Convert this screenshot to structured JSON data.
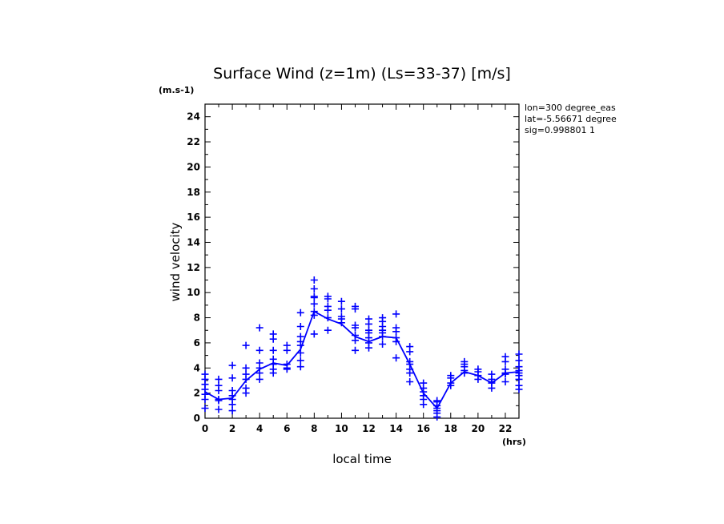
{
  "chart_data": {
    "type": "scatter",
    "title": "Surface Wind (z=1m) (Ls=33-37) [m/s]",
    "ylabel": "wind velocity",
    "yunit": "(m.s-1)",
    "xlabel": "local time",
    "xunit": "(hrs)",
    "info_lines": [
      "lon=300 degree_eas",
      "lat=-5.56671 degree",
      "sig=0.998801 1"
    ],
    "xlim": [
      0,
      23
    ],
    "ylim": [
      0,
      25
    ],
    "xticks": [
      0,
      2,
      4,
      6,
      8,
      10,
      12,
      14,
      16,
      18,
      20,
      22
    ],
    "yticks": [
      0,
      2,
      4,
      6,
      8,
      10,
      12,
      14,
      16,
      18,
      20,
      22,
      24
    ],
    "color": "#0000ff",
    "series": [
      {
        "type": "line",
        "x": [
          0,
          1,
          2,
          3,
          4,
          5,
          6,
          7,
          8,
          9,
          10,
          11,
          12,
          13,
          14,
          15,
          16,
          17,
          18,
          19,
          20,
          21,
          22,
          23
        ],
        "values": [
          2.1,
          1.5,
          1.6,
          3.0,
          3.9,
          4.4,
          4.2,
          5.5,
          8.5,
          7.9,
          7.5,
          6.5,
          6.1,
          6.5,
          6.4,
          4.3,
          2.0,
          0.8,
          2.8,
          3.7,
          3.4,
          2.8,
          3.6,
          3.7
        ]
      },
      {
        "type": "scatter",
        "points": [
          [
            0,
            3.5
          ],
          [
            0,
            3.1
          ],
          [
            0,
            2.7
          ],
          [
            0,
            2.3
          ],
          [
            0,
            1.9
          ],
          [
            0,
            1.5
          ],
          [
            0,
            0.8
          ],
          [
            1,
            3.1
          ],
          [
            1,
            2.6
          ],
          [
            1,
            2.2
          ],
          [
            1,
            1.5
          ],
          [
            1,
            1.4
          ],
          [
            1,
            0.7
          ],
          [
            2,
            4.2
          ],
          [
            2,
            3.2
          ],
          [
            2,
            2.2
          ],
          [
            2,
            1.8
          ],
          [
            2,
            1.5
          ],
          [
            2,
            1.1
          ],
          [
            2,
            0.6
          ],
          [
            3,
            5.8
          ],
          [
            3,
            4.0
          ],
          [
            3,
            3.5
          ],
          [
            3,
            3.1
          ],
          [
            3,
            2.4
          ],
          [
            3,
            2.0
          ],
          [
            4,
            7.2
          ],
          [
            4,
            5.4
          ],
          [
            4,
            4.4
          ],
          [
            4,
            4.0
          ],
          [
            4,
            3.6
          ],
          [
            4,
            3.1
          ],
          [
            5,
            6.7
          ],
          [
            5,
            6.3
          ],
          [
            5,
            5.4
          ],
          [
            5,
            4.7
          ],
          [
            5,
            4.3
          ],
          [
            5,
            3.9
          ],
          [
            5,
            3.6
          ],
          [
            6,
            5.8
          ],
          [
            6,
            5.4
          ],
          [
            6,
            4.3
          ],
          [
            6,
            4.0
          ],
          [
            6,
            3.9
          ],
          [
            7,
            8.4
          ],
          [
            7,
            7.3
          ],
          [
            7,
            6.5
          ],
          [
            7,
            6.1
          ],
          [
            7,
            5.8
          ],
          [
            7,
            5.2
          ],
          [
            7,
            4.6
          ],
          [
            7,
            4.1
          ],
          [
            8,
            11.0
          ],
          [
            8,
            10.3
          ],
          [
            8,
            9.7
          ],
          [
            8,
            9.6
          ],
          [
            8,
            9.1
          ],
          [
            8,
            8.5
          ],
          [
            8,
            8.2
          ],
          [
            8,
            6.7
          ],
          [
            9,
            9.7
          ],
          [
            9,
            9.5
          ],
          [
            9,
            8.9
          ],
          [
            9,
            8.6
          ],
          [
            9,
            8.0
          ],
          [
            9,
            7.0
          ],
          [
            10,
            9.3
          ],
          [
            10,
            8.7
          ],
          [
            10,
            8.1
          ],
          [
            10,
            7.9
          ],
          [
            10,
            7.6
          ],
          [
            11,
            8.9
          ],
          [
            11,
            8.7
          ],
          [
            11,
            7.4
          ],
          [
            11,
            7.2
          ],
          [
            11,
            6.6
          ],
          [
            11,
            6.2
          ],
          [
            11,
            5.4
          ],
          [
            12,
            7.9
          ],
          [
            12,
            7.5
          ],
          [
            12,
            7.0
          ],
          [
            12,
            6.8
          ],
          [
            12,
            6.4
          ],
          [
            12,
            6.0
          ],
          [
            12,
            5.6
          ],
          [
            13,
            8.0
          ],
          [
            13,
            7.7
          ],
          [
            13,
            7.3
          ],
          [
            13,
            7.0
          ],
          [
            13,
            6.8
          ],
          [
            13,
            6.5
          ],
          [
            13,
            5.9
          ],
          [
            14,
            8.3
          ],
          [
            14,
            7.2
          ],
          [
            14,
            6.9
          ],
          [
            14,
            6.4
          ],
          [
            14,
            6.1
          ],
          [
            14,
            4.8
          ],
          [
            15,
            5.7
          ],
          [
            15,
            5.3
          ],
          [
            15,
            4.5
          ],
          [
            15,
            4.3
          ],
          [
            15,
            3.9
          ],
          [
            15,
            3.6
          ],
          [
            15,
            2.9
          ],
          [
            16,
            2.8
          ],
          [
            16,
            2.4
          ],
          [
            16,
            2.1
          ],
          [
            16,
            1.8
          ],
          [
            16,
            1.5
          ],
          [
            16,
            1.1
          ],
          [
            17,
            1.4
          ],
          [
            17,
            1.3
          ],
          [
            17,
            1.0
          ],
          [
            17,
            0.8
          ],
          [
            17,
            0.6
          ],
          [
            17,
            0.4
          ],
          [
            17,
            0.1
          ],
          [
            18,
            3.4
          ],
          [
            18,
            3.2
          ],
          [
            18,
            2.8
          ],
          [
            18,
            2.6
          ],
          [
            19,
            4.5
          ],
          [
            19,
            4.3
          ],
          [
            19,
            4.1
          ],
          [
            19,
            3.8
          ],
          [
            19,
            3.6
          ],
          [
            20,
            3.9
          ],
          [
            20,
            3.7
          ],
          [
            20,
            3.4
          ],
          [
            20,
            3.1
          ],
          [
            21,
            3.5
          ],
          [
            21,
            3.1
          ],
          [
            21,
            2.9
          ],
          [
            21,
            2.8
          ],
          [
            21,
            2.4
          ],
          [
            22,
            4.9
          ],
          [
            22,
            4.5
          ],
          [
            22,
            3.9
          ],
          [
            22,
            3.6
          ],
          [
            22,
            3.5
          ],
          [
            22,
            2.9
          ],
          [
            23,
            5.1
          ],
          [
            23,
            4.6
          ],
          [
            23,
            4.1
          ],
          [
            23,
            3.8
          ],
          [
            23,
            3.6
          ],
          [
            23,
            3.4
          ],
          [
            23,
            3.1
          ],
          [
            23,
            2.6
          ],
          [
            23,
            2.3
          ]
        ]
      }
    ]
  }
}
